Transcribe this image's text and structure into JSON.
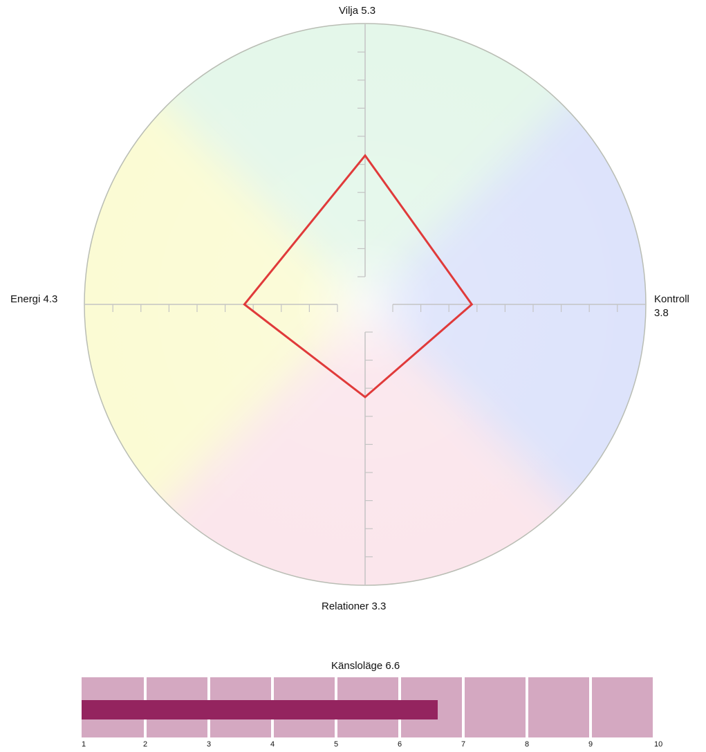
{
  "chart_data": [
    {
      "type": "radar",
      "axes": [
        {
          "key": "vilja",
          "name": "Vilja",
          "value": 5.3,
          "position": "top"
        },
        {
          "key": "kontroll",
          "name": "Kontroll",
          "value": 3.8,
          "position": "right"
        },
        {
          "key": "relationer",
          "name": "Relationer",
          "value": 3.3,
          "position": "bottom"
        },
        {
          "key": "energi",
          "name": "Energi",
          "value": 4.3,
          "position": "left"
        }
      ],
      "labels": {
        "top": "Vilja 5.3",
        "right": "Kontroll 3.8",
        "bottom": "Relationer 3.3",
        "left": "Energi 4.3"
      },
      "scale_min": 1,
      "scale_max": 10,
      "ticks_per_axis": 10,
      "series_color": "#e03a3a",
      "background": "color wheel",
      "wheel_colors": {
        "top": "#e4f7ea",
        "right": "#dde3fb",
        "bottom": "#fbe6ec",
        "left": "#fbfbd4"
      }
    },
    {
      "type": "bar",
      "title": "Känsloläge 6.6",
      "value": 6.6,
      "xlim": [
        1,
        10
      ],
      "ticks": [
        "1",
        "2",
        "3",
        "4",
        "5",
        "6",
        "7",
        "8",
        "9",
        "10"
      ],
      "fill_color": "#94245f",
      "cell_color": "#d4a8c1"
    }
  ]
}
